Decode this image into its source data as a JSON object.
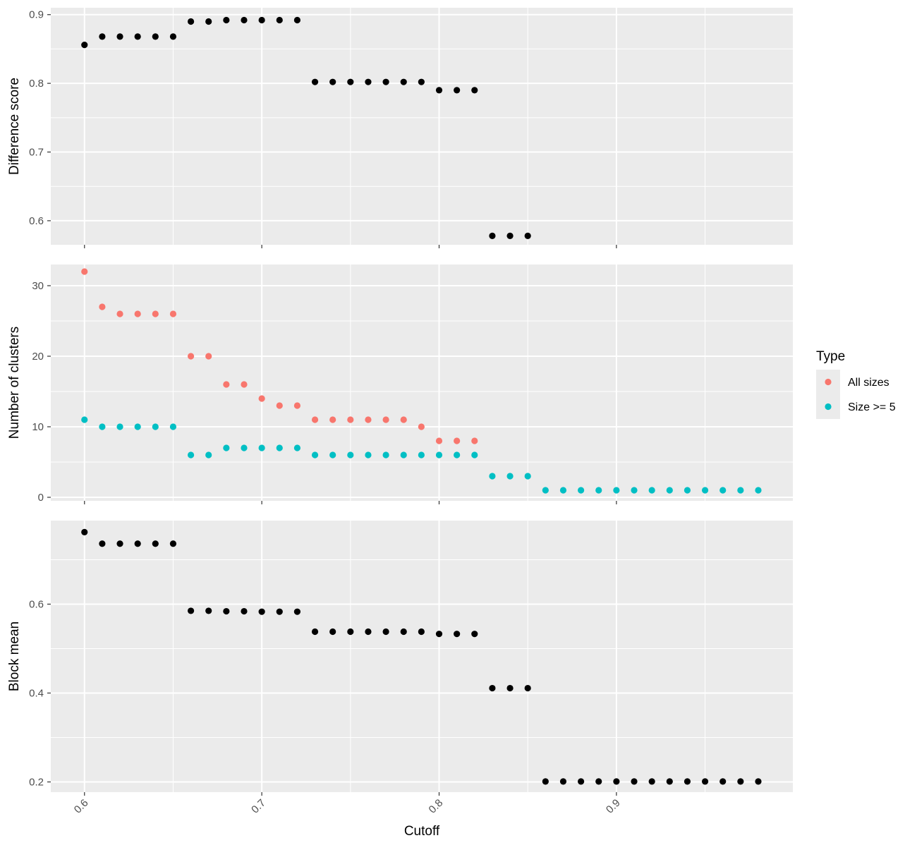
{
  "chart_data": [
    {
      "type": "scatter",
      "ylabel": "Difference score",
      "ylim": [
        0.565,
        0.91
      ],
      "yticks": [
        0.6,
        0.7,
        0.8,
        0.9
      ],
      "yticklabels": [
        "0.6",
        "0.7",
        "0.8",
        "0.9"
      ],
      "grid": true,
      "series": [
        {
          "color": "#000000",
          "points": [
            [
              0.6,
              0.856
            ],
            [
              0.61,
              0.868
            ],
            [
              0.62,
              0.868
            ],
            [
              0.63,
              0.868
            ],
            [
              0.64,
              0.868
            ],
            [
              0.65,
              0.868
            ],
            [
              0.66,
              0.89
            ],
            [
              0.67,
              0.89
            ],
            [
              0.68,
              0.892
            ],
            [
              0.69,
              0.892
            ],
            [
              0.7,
              0.892
            ],
            [
              0.71,
              0.892
            ],
            [
              0.72,
              0.892
            ],
            [
              0.73,
              0.802
            ],
            [
              0.74,
              0.802
            ],
            [
              0.75,
              0.802
            ],
            [
              0.76,
              0.802
            ],
            [
              0.77,
              0.802
            ],
            [
              0.78,
              0.802
            ],
            [
              0.79,
              0.802
            ],
            [
              0.8,
              0.79
            ],
            [
              0.81,
              0.79
            ],
            [
              0.82,
              0.79
            ],
            [
              0.83,
              0.578
            ],
            [
              0.84,
              0.578
            ],
            [
              0.85,
              0.578
            ]
          ]
        }
      ]
    },
    {
      "type": "scatter",
      "ylabel": "Number of clusters",
      "ylim": [
        -0.5,
        33.0
      ],
      "yticks": [
        0,
        10,
        20,
        30
      ],
      "yticklabels": [
        "0",
        "10",
        "20",
        "30"
      ],
      "grid": true,
      "legend": {
        "title": "Type",
        "placement": "right"
      },
      "series": [
        {
          "name": "All sizes",
          "color": "#F8766D",
          "points": [
            [
              0.6,
              32
            ],
            [
              0.61,
              27
            ],
            [
              0.62,
              26
            ],
            [
              0.63,
              26
            ],
            [
              0.64,
              26
            ],
            [
              0.65,
              26
            ],
            [
              0.66,
              20
            ],
            [
              0.67,
              20
            ],
            [
              0.68,
              16
            ],
            [
              0.69,
              16
            ],
            [
              0.7,
              14
            ],
            [
              0.71,
              13
            ],
            [
              0.72,
              13
            ],
            [
              0.73,
              11
            ],
            [
              0.74,
              11
            ],
            [
              0.75,
              11
            ],
            [
              0.76,
              11
            ],
            [
              0.77,
              11
            ],
            [
              0.78,
              11
            ],
            [
              0.79,
              10
            ],
            [
              0.8,
              8
            ],
            [
              0.81,
              8
            ],
            [
              0.82,
              8
            ]
          ]
        },
        {
          "name": "Size >= 5",
          "color": "#00BFC4",
          "points": [
            [
              0.6,
              11
            ],
            [
              0.61,
              10
            ],
            [
              0.62,
              10
            ],
            [
              0.63,
              10
            ],
            [
              0.64,
              10
            ],
            [
              0.65,
              10
            ],
            [
              0.66,
              6
            ],
            [
              0.67,
              6
            ],
            [
              0.68,
              7
            ],
            [
              0.69,
              7
            ],
            [
              0.7,
              7
            ],
            [
              0.71,
              7
            ],
            [
              0.72,
              7
            ],
            [
              0.73,
              6
            ],
            [
              0.74,
              6
            ],
            [
              0.75,
              6
            ],
            [
              0.76,
              6
            ],
            [
              0.77,
              6
            ],
            [
              0.78,
              6
            ],
            [
              0.79,
              6
            ],
            [
              0.8,
              6
            ],
            [
              0.81,
              6
            ],
            [
              0.82,
              6
            ],
            [
              0.83,
              3
            ],
            [
              0.84,
              3
            ],
            [
              0.85,
              3
            ],
            [
              0.86,
              1
            ],
            [
              0.87,
              1
            ],
            [
              0.88,
              1
            ],
            [
              0.89,
              1
            ],
            [
              0.9,
              1
            ],
            [
              0.91,
              1
            ],
            [
              0.92,
              1
            ],
            [
              0.93,
              1
            ],
            [
              0.94,
              1
            ],
            [
              0.95,
              1
            ],
            [
              0.96,
              1
            ],
            [
              0.97,
              1
            ],
            [
              0.98,
              1
            ]
          ]
        }
      ]
    },
    {
      "type": "scatter",
      "ylabel": "Block mean",
      "xlabel": "Cutoff",
      "ylim": [
        0.177,
        0.788
      ],
      "yticks": [
        0.2,
        0.4,
        0.6
      ],
      "yticklabels": [
        "0.2",
        "0.4",
        "0.6"
      ],
      "grid": true,
      "series": [
        {
          "color": "#000000",
          "points": [
            [
              0.6,
              0.762
            ],
            [
              0.61,
              0.736
            ],
            [
              0.62,
              0.736
            ],
            [
              0.63,
              0.736
            ],
            [
              0.64,
              0.736
            ],
            [
              0.65,
              0.736
            ],
            [
              0.66,
              0.585
            ],
            [
              0.67,
              0.585
            ],
            [
              0.68,
              0.584
            ],
            [
              0.69,
              0.584
            ],
            [
              0.7,
              0.583
            ],
            [
              0.71,
              0.583
            ],
            [
              0.72,
              0.583
            ],
            [
              0.73,
              0.538
            ],
            [
              0.74,
              0.538
            ],
            [
              0.75,
              0.538
            ],
            [
              0.76,
              0.538
            ],
            [
              0.77,
              0.538
            ],
            [
              0.78,
              0.538
            ],
            [
              0.79,
              0.538
            ],
            [
              0.8,
              0.533
            ],
            [
              0.81,
              0.533
            ],
            [
              0.82,
              0.533
            ],
            [
              0.83,
              0.411
            ],
            [
              0.84,
              0.411
            ],
            [
              0.85,
              0.411
            ],
            [
              0.86,
              0.201
            ],
            [
              0.87,
              0.201
            ],
            [
              0.88,
              0.201
            ],
            [
              0.89,
              0.201
            ],
            [
              0.9,
              0.201
            ],
            [
              0.91,
              0.201
            ],
            [
              0.92,
              0.201
            ],
            [
              0.93,
              0.201
            ],
            [
              0.94,
              0.201
            ],
            [
              0.95,
              0.201
            ],
            [
              0.96,
              0.201
            ],
            [
              0.97,
              0.201
            ],
            [
              0.98,
              0.201
            ]
          ]
        }
      ]
    }
  ],
  "x_axis": {
    "xlim": [
      0.581,
      0.9995
    ],
    "ticks": [
      0.6,
      0.7,
      0.8,
      0.9
    ],
    "ticklabels": [
      "0.6",
      "0.7",
      "0.8",
      "0.9"
    ],
    "label": "Cutoff"
  }
}
